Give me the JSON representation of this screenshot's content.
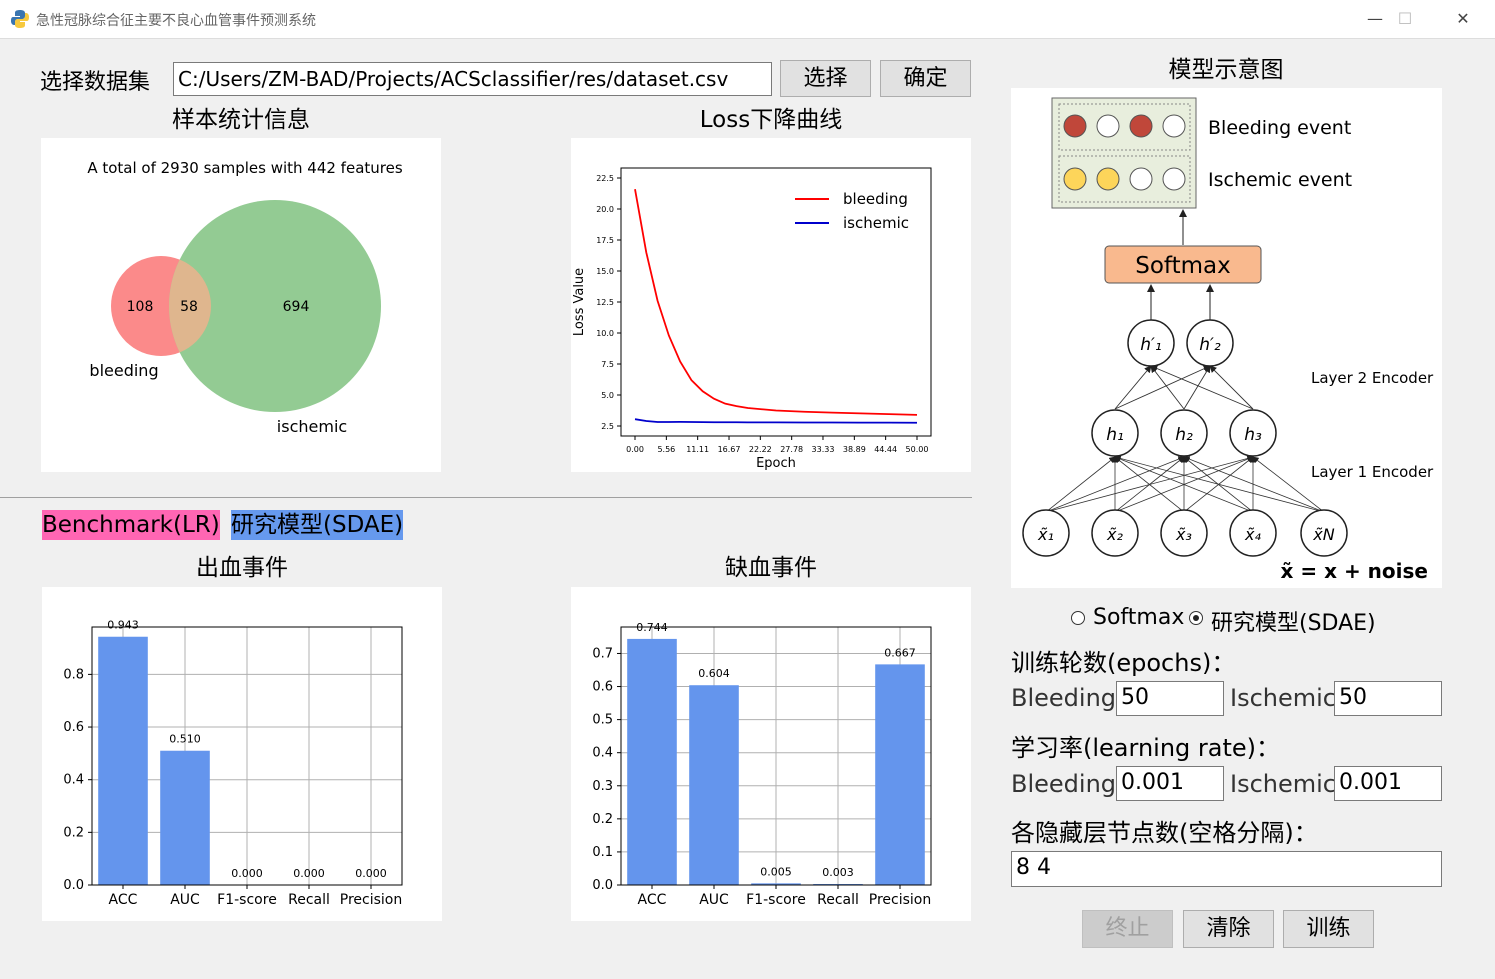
{
  "window": {
    "title": "急性冠脉综合征主要不良心血管事件预测系统",
    "minimize": "—",
    "maximize": "☐",
    "close": "✕"
  },
  "dataset": {
    "label": "选择数据集",
    "path": "C:/Users/ZM-BAD/Projects/ACSclassifier/res/dataset.csv",
    "select_button": "选择",
    "confirm_button": "确定"
  },
  "stats": {
    "title": "样本统计信息",
    "summary": "A total of 2930 samples with 442 features",
    "venn": {
      "bleeding_only": "108",
      "both": "58",
      "ischemic_only": "694",
      "bleeding_label": "bleeding",
      "ischemic_label": "ischemic",
      "bleeding_color": "#fb8a8a",
      "ischemic_color": "#93cb93",
      "overlap_color": "#dfb68e"
    }
  },
  "loss": {
    "title": "Loss下降曲线",
    "chart_data": {
      "type": "line",
      "xlabel": "Epoch",
      "ylabel": "Loss Value",
      "xlim": [
        0,
        50
      ],
      "ylim": [
        2.5,
        22.5
      ],
      "xticks": [
        "0.00",
        "5.56",
        "11.11",
        "16.67",
        "22.22",
        "27.78",
        "33.33",
        "38.89",
        "44.44",
        "50.00"
      ],
      "yticks": [
        "2.5",
        "5.0",
        "7.5",
        "10.0",
        "12.5",
        "15.0",
        "17.5",
        "20.0",
        "22.5"
      ],
      "legend": "top-right",
      "x": [
        0,
        2,
        4,
        6,
        8,
        10,
        12,
        14,
        16,
        18,
        20,
        25,
        30,
        35,
        40,
        45,
        50
      ],
      "series": [
        {
          "name": "bleeding",
          "color": "#ff0000",
          "values": [
            21.6,
            16.5,
            12.6,
            9.8,
            7.7,
            6.2,
            5.3,
            4.7,
            4.3,
            4.1,
            3.95,
            3.75,
            3.65,
            3.58,
            3.52,
            3.46,
            3.4
          ]
        },
        {
          "name": "ischemic",
          "color": "#0000cc",
          "values": [
            3.05,
            2.9,
            2.82,
            2.82,
            2.83,
            2.82,
            2.81,
            2.8,
            2.8,
            2.8,
            2.79,
            2.79,
            2.78,
            2.78,
            2.77,
            2.77,
            2.76
          ]
        }
      ]
    }
  },
  "legend": {
    "benchmark": "Benchmark(LR)",
    "benchmark_color": "#ff66b3",
    "sdae": "研究模型(SDAE)",
    "sdae_color": "#6699ee"
  },
  "bleeding_chart": {
    "title": "出血事件",
    "chart_data": {
      "type": "bar",
      "categories": [
        "ACC",
        "AUC",
        "F1-score",
        "Recall",
        "Precision"
      ],
      "values": [
        0.943,
        0.51,
        0.0,
        0.0,
        0.0
      ],
      "value_labels": [
        "0.943",
        "0.510",
        "0.000",
        "0.000",
        "0.000"
      ],
      "ylim": [
        0,
        0.98
      ],
      "yticks": [
        "0.0",
        "0.2",
        "0.4",
        "0.6",
        "0.8"
      ],
      "color": "#6495ed",
      "grid": true
    }
  },
  "ischemic_chart": {
    "title": "缺血事件",
    "chart_data": {
      "type": "bar",
      "categories": [
        "ACC",
        "AUC",
        "F1-score",
        "Recall",
        "Precision"
      ],
      "values": [
        0.744,
        0.604,
        0.005,
        0.003,
        0.667
      ],
      "value_labels": [
        "0.744",
        "0.604",
        "0.005",
        "0.003",
        "0.667"
      ],
      "ylim": [
        0,
        0.78
      ],
      "yticks": [
        "0.0",
        "0.1",
        "0.2",
        "0.3",
        "0.4",
        "0.5",
        "0.6",
        "0.7"
      ],
      "color": "#6495ed",
      "grid": true
    }
  },
  "diagram": {
    "title": "模型示意图",
    "bleeding_event": "Bleeding event",
    "ischemic_event": "Ischemic event",
    "softmax": "Softmax",
    "layer2": "Layer 2 Encoder",
    "layer1": "Layer 1 Encoder",
    "h2": [
      "h′₁",
      "h′₂"
    ],
    "h1": [
      "h₁",
      "h₂",
      "h₃"
    ],
    "inputs": [
      "x̃₁",
      "x̃₂",
      "x̃₃",
      "x̃₄",
      "x̃N"
    ],
    "noise": "x̃ = x + noise",
    "red": "#c0473a",
    "yellow": "#fdd55a",
    "softmax_color": "#f9b98e"
  },
  "options": {
    "radio_softmax": "Softmax",
    "radio_sdae": "研究模型(SDAE)",
    "epochs_label": "训练轮数(epochs)：",
    "bleeding_label": "Bleeding",
    "ischemic_label": "Ischemic",
    "epochs_bleeding": "50",
    "epochs_ischemic": "50",
    "lr_label": "学习率(learning  rate)：",
    "lr_bleeding": "0.001",
    "lr_ischemic": "0.001",
    "hidden_label": "各隐藏层节点数(空格分隔)：",
    "hidden_value": "8 4",
    "stop_button": "终止",
    "clear_button": "清除",
    "train_button": "训练"
  }
}
